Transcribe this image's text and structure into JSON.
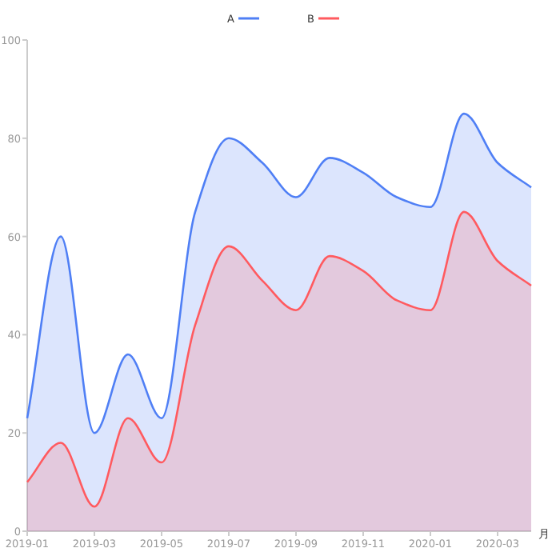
{
  "chart_data": {
    "type": "area",
    "xlabel": "月",
    "x": [
      "2019-01",
      "2019-02",
      "2019-03",
      "2019-04",
      "2019-05",
      "2019-06",
      "2019-07",
      "2019-08",
      "2019-09",
      "2019-10",
      "2019-11",
      "2019-12",
      "2020-01",
      "2020-02",
      "2020-03",
      "2020-04"
    ],
    "series": [
      {
        "name": "A",
        "color": "#4f7ff5",
        "values": [
          23,
          60,
          20,
          36,
          23,
          65,
          80,
          75,
          68,
          76,
          73,
          68,
          66,
          85,
          75,
          70
        ]
      },
      {
        "name": "B",
        "color": "#ff5a5f",
        "values": [
          10,
          18,
          5,
          23,
          14,
          42,
          58,
          51,
          45,
          56,
          53,
          47,
          45,
          65,
          55,
          50
        ]
      }
    ],
    "xlim": [
      "2019-01",
      "2020-04"
    ],
    "xticks": [
      "2019-01",
      "2019-03",
      "2019-05",
      "2019-07",
      "2019-09",
      "2019-11",
      "2020-01",
      "2020-03"
    ],
    "ylim": [
      0,
      100
    ],
    "yticks": [
      0,
      20,
      40,
      60,
      80,
      100
    ],
    "grid": false,
    "legend": "top",
    "line_style": "solid",
    "marker": "none"
  }
}
